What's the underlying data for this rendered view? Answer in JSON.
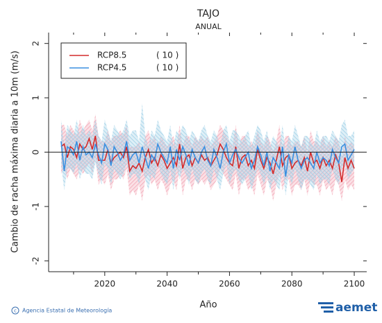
{
  "chart_data": {
    "type": "line",
    "title": "TAJO",
    "subtitle": "ANUAL",
    "x_label": "Año",
    "y_label": "Cambio de racha máxima diaria a 10m (m/s)",
    "x": [
      2006,
      2007,
      2008,
      2009,
      2010,
      2011,
      2012,
      2013,
      2014,
      2015,
      2016,
      2017,
      2018,
      2019,
      2020,
      2021,
      2022,
      2023,
      2024,
      2025,
      2026,
      2027,
      2028,
      2029,
      2030,
      2031,
      2032,
      2033,
      2034,
      2035,
      2036,
      2037,
      2038,
      2039,
      2040,
      2041,
      2042,
      2043,
      2044,
      2045,
      2046,
      2047,
      2048,
      2049,
      2050,
      2051,
      2052,
      2053,
      2054,
      2055,
      2056,
      2057,
      2058,
      2059,
      2060,
      2061,
      2062,
      2063,
      2064,
      2065,
      2066,
      2067,
      2068,
      2069,
      2070,
      2071,
      2072,
      2073,
      2074,
      2075,
      2076,
      2077,
      2078,
      2079,
      2080,
      2081,
      2082,
      2083,
      2084,
      2085,
      2086,
      2087,
      2088,
      2089,
      2090,
      2091,
      2092,
      2093,
      2094,
      2095,
      2096,
      2097,
      2098,
      2099,
      2100
    ],
    "series": [
      {
        "name": "RCP8.5",
        "note": "( 10 )",
        "color": "#d42a2a",
        "band_color": "#f2a5b5",
        "values": [
          0.1,
          0.15,
          -0.1,
          0.1,
          0.05,
          -0.1,
          0.15,
          0.05,
          0.1,
          0.25,
          0.05,
          0.3,
          -0.15,
          -0.15,
          -0.15,
          0.05,
          -0.2,
          -0.1,
          -0.05,
          0,
          -0.1,
          0.1,
          -0.35,
          -0.25,
          -0.3,
          -0.2,
          -0.35,
          -0.1,
          0.05,
          -0.2,
          -0.1,
          -0.25,
          -0.05,
          -0.15,
          -0.3,
          -0.2,
          -0.1,
          -0.25,
          0.15,
          -0.3,
          -0.1,
          -0.05,
          -0.25,
          -0.1,
          -0.2,
          -0.05,
          -0.15,
          -0.1,
          -0.25,
          -0.15,
          -0.05,
          0.15,
          0.05,
          -0.1,
          -0.2,
          -0.25,
          0.1,
          -0.3,
          -0.1,
          -0.05,
          -0.25,
          -0.15,
          -0.3,
          0.05,
          -0.15,
          -0.3,
          -0.1,
          -0.2,
          -0.4,
          -0.15,
          0.1,
          -0.25,
          -0.1,
          -0.05,
          -0.3,
          -0.2,
          -0.15,
          -0.25,
          -0.1,
          -0.35,
          0,
          -0.2,
          -0.15,
          -0.3,
          -0.1,
          -0.25,
          -0.15,
          -0.3,
          -0.05,
          -0.2,
          -0.55,
          -0.1,
          -0.3,
          -0.15,
          -0.3
        ],
        "lower": [
          -0.4,
          -0.3,
          -0.5,
          -0.3,
          -0.4,
          -0.5,
          -0.3,
          -0.4,
          -0.3,
          -0.2,
          -0.4,
          -0.1,
          -0.6,
          -0.5,
          -0.6,
          -0.4,
          -0.7,
          -0.5,
          -0.5,
          -0.4,
          -0.5,
          -0.3,
          -0.8,
          -0.7,
          -0.8,
          -0.6,
          -0.9,
          -0.5,
          -0.4,
          -0.6,
          -0.5,
          -0.7,
          -0.5,
          -0.6,
          -0.8,
          -0.6,
          -0.5,
          -0.7,
          -0.3,
          -0.8,
          -0.5,
          -0.5,
          -0.7,
          -0.5,
          -0.6,
          -0.5,
          -0.6,
          -0.5,
          -0.7,
          -0.6,
          -0.5,
          -0.3,
          -0.4,
          -0.5,
          -0.6,
          -0.7,
          -0.4,
          -0.8,
          -0.5,
          -0.5,
          -0.7,
          -0.6,
          -0.8,
          -0.4,
          -0.6,
          -0.8,
          -0.5,
          -0.6,
          -0.9,
          -0.6,
          -0.4,
          -0.7,
          -0.5,
          -0.5,
          -0.8,
          -0.6,
          -0.6,
          -0.7,
          -0.5,
          -0.8,
          -0.5,
          -0.6,
          -0.6,
          -0.8,
          -0.5,
          -0.7,
          -0.6,
          -0.8,
          -0.5,
          -0.6,
          -0.9,
          -0.5,
          -0.7,
          -0.6,
          -0.7
        ],
        "upper": [
          0.5,
          0.5,
          0.3,
          0.5,
          0.4,
          0.3,
          0.6,
          0.4,
          0.5,
          0.6,
          0.4,
          0.7,
          0.3,
          0.2,
          0.2,
          0.4,
          0.2,
          0.3,
          0.3,
          0.4,
          0.3,
          0.5,
          0.1,
          0.1,
          0.1,
          0.2,
          0,
          0.3,
          0.4,
          0.2,
          0.3,
          0.1,
          0.3,
          0.2,
          0.1,
          0.2,
          0.3,
          0.1,
          0.5,
          0.1,
          0.3,
          0.3,
          0.1,
          0.3,
          0.2,
          0.3,
          0.2,
          0.3,
          0.1,
          0.2,
          0.3,
          0.5,
          0.4,
          0.3,
          0.2,
          0.1,
          0.5,
          0.1,
          0.3,
          0.3,
          0.1,
          0.2,
          0.1,
          0.4,
          0.2,
          0.1,
          0.3,
          0.2,
          0,
          0.2,
          0.5,
          0.1,
          0.3,
          0.3,
          0.1,
          0.2,
          0.2,
          0.1,
          0.3,
          0,
          0.4,
          0.2,
          0.2,
          0.1,
          0.3,
          0.1,
          0.2,
          0.1,
          0.3,
          0.2,
          -0.1,
          0.3,
          0.1,
          0.2,
          0.1
        ]
      },
      {
        "name": "RCP4.5",
        "note": "( 10 )",
        "color": "#3a8fe0",
        "band_color": "#9fd0e6",
        "values": [
          0.2,
          -0.35,
          0.1,
          0.05,
          -0.05,
          0.2,
          -0.15,
          0.1,
          -0.05,
          0,
          -0.1,
          0.15,
          -0.05,
          -0.2,
          0.15,
          0.05,
          -0.25,
          0.1,
          0,
          -0.15,
          -0.05,
          0.2,
          -0.15,
          -0.05,
          0,
          -0.2,
          0.1,
          -0.1,
          -0.3,
          -0.05,
          -0.15,
          0.15,
          0,
          -0.1,
          -0.2,
          0.1,
          -0.3,
          0.05,
          -0.15,
          0.1,
          -0.05,
          -0.25,
          0.05,
          -0.1,
          -0.2,
          0,
          0.1,
          -0.15,
          -0.25,
          0.05,
          -0.1,
          -0.3,
          0,
          0.15,
          -0.2,
          -0.05,
          0.05,
          -0.1,
          -0.2,
          -0.1,
          0,
          -0.3,
          -0.15,
          0.1,
          -0.05,
          -0.25,
          0,
          -0.35,
          -0.1,
          -0.2,
          -0.3,
          0.1,
          -0.45,
          -0.05,
          -0.2,
          0.1,
          -0.15,
          -0.3,
          -0.15,
          -0.1,
          -0.2,
          -0.3,
          0,
          -0.2,
          -0.1,
          -0.15,
          -0.25,
          0.05,
          -0.1,
          -0.2,
          0.1,
          0.15,
          -0.15,
          -0.05,
          0.05
        ],
        "lower": [
          -0.2,
          -0.7,
          -0.3,
          -0.3,
          -0.4,
          -0.2,
          -0.5,
          -0.3,
          -0.4,
          -0.4,
          -0.5,
          -0.2,
          -0.4,
          -0.6,
          -0.2,
          -0.3,
          -0.6,
          -0.3,
          -0.4,
          -0.5,
          -0.4,
          -0.2,
          -0.5,
          -0.4,
          -0.4,
          -0.6,
          -0.3,
          -0.5,
          -0.7,
          -0.4,
          -0.5,
          -0.2,
          -0.4,
          -0.5,
          -0.6,
          -0.3,
          -0.7,
          -0.3,
          -0.5,
          -0.3,
          -0.4,
          -0.6,
          -0.3,
          -0.5,
          -0.6,
          -0.4,
          -0.3,
          -0.5,
          -0.6,
          -0.3,
          -0.5,
          -0.7,
          -0.4,
          -0.2,
          -0.6,
          -0.4,
          -0.3,
          -0.5,
          -0.6,
          -0.5,
          -0.4,
          -0.7,
          -0.5,
          -0.3,
          -0.4,
          -0.6,
          -0.4,
          -0.7,
          -0.5,
          -0.6,
          -0.7,
          -0.3,
          -0.8,
          -0.4,
          -0.6,
          -0.3,
          -0.5,
          -0.7,
          -0.5,
          -0.5,
          -0.6,
          -0.7,
          -0.4,
          -0.6,
          -0.5,
          -0.5,
          -0.6,
          -0.3,
          -0.5,
          -0.6,
          -0.3,
          -0.2,
          -0.5,
          -0.4,
          -0.3
        ],
        "upper": [
          0.6,
          0.1,
          0.5,
          0.4,
          0.3,
          0.6,
          0.3,
          0.5,
          0.3,
          0.4,
          0.3,
          0.6,
          0.3,
          0.2,
          0.6,
          0.4,
          0.2,
          0.5,
          0.4,
          0.3,
          0.4,
          0.6,
          0.3,
          0.4,
          0.4,
          0.2,
          0.9,
          0.3,
          0.1,
          0.4,
          0.3,
          0.6,
          0.4,
          0.3,
          0.2,
          0.5,
          0.1,
          0.4,
          0.3,
          0.5,
          0.4,
          0.2,
          0.4,
          0.3,
          0.2,
          0.4,
          0.5,
          0.3,
          0.2,
          0.4,
          0.3,
          0.1,
          0.4,
          0.5,
          0.2,
          0.4,
          0.4,
          0.3,
          0.2,
          0.3,
          0.4,
          0.1,
          0.3,
          0.5,
          0.4,
          0.2,
          0.4,
          0.1,
          0.3,
          0.2,
          0.1,
          0.5,
          0,
          0.3,
          0.2,
          0.5,
          0.3,
          0.1,
          0.3,
          0.3,
          0.2,
          0.1,
          0.4,
          0.2,
          0.3,
          0.3,
          0.2,
          0.4,
          0.3,
          0.2,
          0.5,
          0.6,
          0.3,
          0.3,
          0.4
        ]
      }
    ],
    "xlim": [
      2002,
      2104
    ],
    "xticks": [
      2020,
      2040,
      2060,
      2080,
      2100
    ],
    "xminorticks": [
      2010,
      2030,
      2050,
      2070,
      2090
    ],
    "ylim": [
      -2.2,
      2.2
    ],
    "yticks": [
      -2,
      -1,
      0,
      1,
      2
    ],
    "reference_line": 0,
    "legend": "upper left"
  },
  "footer": {
    "credit": "Agencia Estatal de Meteorología",
    "logo": "aemet"
  }
}
